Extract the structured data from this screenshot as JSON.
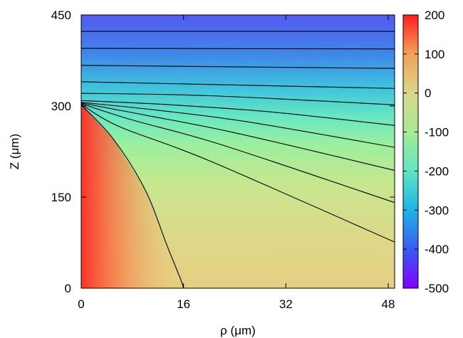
{
  "chart_data": {
    "type": "heatmap",
    "title": "",
    "xlabel": "ρ (μm)",
    "ylabel": "Z (μm)",
    "xlim": [
      0,
      49
    ],
    "ylim": [
      0,
      450
    ],
    "xticks": [
      {
        "value": 0,
        "label": "0"
      },
      {
        "value": 16,
        "label": "16"
      },
      {
        "value": 32,
        "label": "32"
      },
      {
        "value": 48,
        "label": "48"
      }
    ],
    "yticks": [
      {
        "value": 0,
        "label": "0"
      },
      {
        "value": 150,
        "label": "150"
      },
      {
        "value": 300,
        "label": "300"
      },
      {
        "value": 450,
        "label": "450"
      }
    ],
    "colorbar": {
      "range": [
        -500,
        200
      ],
      "ticks": [
        {
          "value": 200,
          "label": "200"
        },
        {
          "value": 100,
          "label": "100"
        },
        {
          "value": 0,
          "label": "0"
        },
        {
          "value": -100,
          "label": "-100"
        },
        {
          "value": -200,
          "label": "-200"
        },
        {
          "value": -300,
          "label": "-300"
        },
        {
          "value": -400,
          "label": "-400"
        },
        {
          "value": -500,
          "label": "-500"
        }
      ],
      "colormap": "rainbow",
      "stops": [
        "#7f00ff",
        "#3a5cf0",
        "#1eb3e6",
        "#60e6c4",
        "#a6eb95",
        "#d8d78a",
        "#f2a25a",
        "#ff1e1e"
      ]
    },
    "contours": [
      {
        "points": [
          [
            0,
            423
          ],
          [
            49,
            423
          ]
        ]
      },
      {
        "points": [
          [
            0,
            395
          ],
          [
            49,
            394
          ]
        ]
      },
      {
        "points": [
          [
            0,
            367
          ],
          [
            49,
            362
          ]
        ]
      },
      {
        "points": [
          [
            0,
            340
          ],
          [
            49,
            329
          ]
        ]
      },
      {
        "points": [
          [
            0,
            321
          ],
          [
            20,
            317
          ],
          [
            49,
            302
          ]
        ]
      },
      {
        "points": [
          [
            0,
            309
          ],
          [
            14,
            302
          ],
          [
            30,
            290
          ],
          [
            49,
            268
          ]
        ]
      },
      {
        "points": [
          [
            0,
            306
          ],
          [
            12,
            293
          ],
          [
            26,
            274
          ],
          [
            49,
            232
          ]
        ]
      },
      {
        "points": [
          [
            0,
            305
          ],
          [
            10,
            285
          ],
          [
            24,
            256
          ],
          [
            49,
            194
          ]
        ]
      },
      {
        "points": [
          [
            0,
            304
          ],
          [
            8,
            277
          ],
          [
            22,
            236
          ],
          [
            49,
            141
          ]
        ]
      },
      {
        "points": [
          [
            0,
            303
          ],
          [
            6,
            266
          ],
          [
            20,
            210
          ],
          [
            49,
            76
          ]
        ]
      },
      {
        "points": [
          [
            0,
            302
          ],
          [
            5,
            246
          ],
          [
            10,
            162
          ],
          [
            13.5,
            68
          ],
          [
            15.5,
            16
          ],
          [
            16,
            0
          ]
        ]
      }
    ]
  }
}
